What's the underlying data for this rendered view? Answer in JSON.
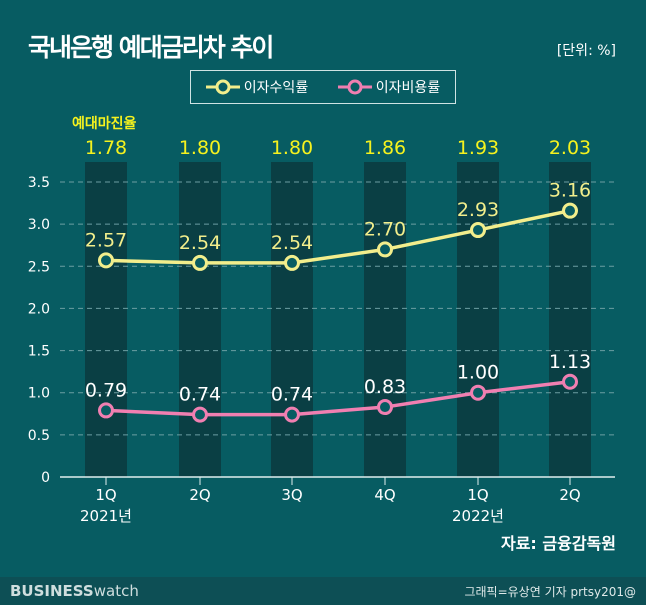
{
  "title": "국내은행 예대금리차 추이",
  "unit": "[단위: %]",
  "source": "자료: 금융감독원",
  "footer": {
    "brand_bold": "BUSINESS",
    "brand_light": "watch",
    "credit": "그래픽=유상연 기자 prtsy201@"
  },
  "chart_data": {
    "type": "line",
    "categories": [
      "1Q",
      "2Q",
      "3Q",
      "4Q",
      "1Q",
      "2Q"
    ],
    "category_years": [
      "2021년",
      "",
      "",
      "",
      "2022년",
      ""
    ],
    "ylim": [
      0,
      3.5
    ],
    "yticks": [
      "0",
      "0.5",
      "1.0",
      "1.5",
      "2.0",
      "2.5",
      "3.0",
      "3.5"
    ],
    "grid": "horizontal dashed",
    "legend_position": "top-center",
    "series": [
      {
        "name": "이자수익률",
        "color": "#f2ee8c",
        "values": [
          2.57,
          2.54,
          2.54,
          2.7,
          2.93,
          3.16
        ],
        "labels": [
          "2.57",
          "2.54",
          "2.54",
          "2.70",
          "2.93",
          "3.16"
        ]
      },
      {
        "name": "이자비용률",
        "color": "#f07fb1",
        "values": [
          0.79,
          0.74,
          0.74,
          0.83,
          1.0,
          1.13
        ],
        "labels": [
          "0.79",
          "0.74",
          "0.74",
          "0.83",
          "1.00",
          "1.13"
        ]
      }
    ],
    "margin": {
      "name": "예대마진율",
      "color": "#f5f21e",
      "values": [
        "1.78",
        "1.80",
        "1.80",
        "1.86",
        "1.93",
        "2.03"
      ]
    }
  }
}
